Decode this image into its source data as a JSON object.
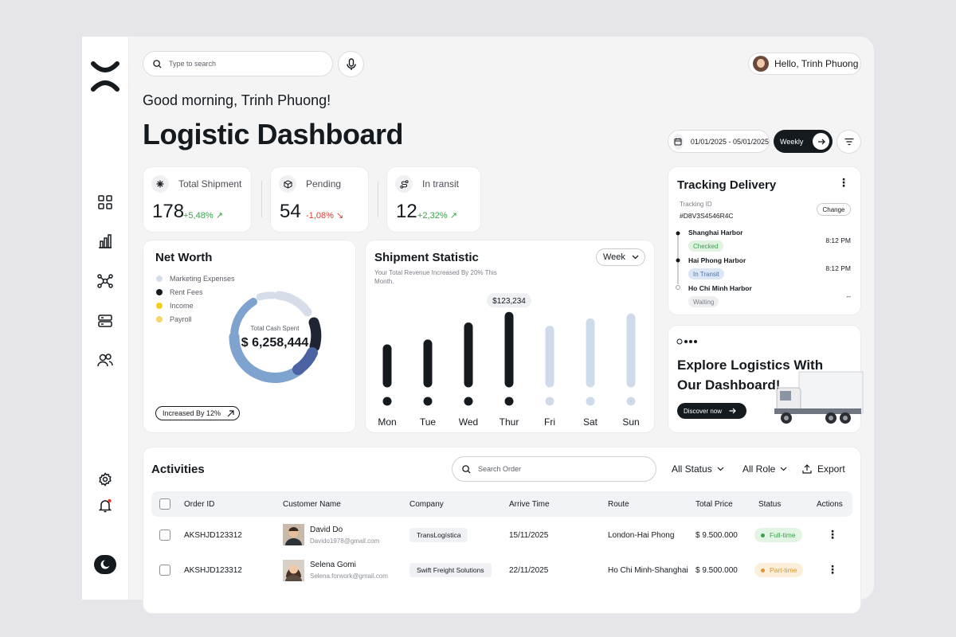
{
  "search": {
    "placeholder": "Type to search"
  },
  "user": {
    "greeting_chip": "Hello, Trinh Phuong"
  },
  "header": {
    "greeting": "Good morning, Trinh Phuong!",
    "title": "Logistic Dashboard",
    "date_range": "01/01/2025 - 05/01/2025",
    "period_button": "Weekly"
  },
  "stats": [
    {
      "label": "Total Shipment",
      "value": "178",
      "change": "+5,48%",
      "trend": "up",
      "icon": "asterisk-icon"
    },
    {
      "label": "Pending",
      "value": "54",
      "change": "-1,08%",
      "trend": "down",
      "icon": "box-icon"
    },
    {
      "label": "In transit",
      "value": "12",
      "change": "+2,32%",
      "trend": "up",
      "icon": "route-icon"
    }
  ],
  "net_worth": {
    "title": "Net Worth",
    "legend": [
      {
        "label": "Marketing Expenses",
        "color": "#d6dde8"
      },
      {
        "label": "Rent Fees",
        "color": "#151a1f"
      },
      {
        "label": "Income",
        "color": "#f2cf1f"
      },
      {
        "label": "Payroll",
        "color": "#f5d56a"
      }
    ],
    "center_label": "Total Cash Spent",
    "center_value": "$ 6,258,444",
    "increase_button": "Increased By 12%"
  },
  "shipment": {
    "title": "Shipment Statistic",
    "period_select": "Week",
    "note": "Your Total Revenue Increased By 20% This Month.",
    "tooltip": "$123,234"
  },
  "chart_data": {
    "type": "bar",
    "title": "Shipment Statistic",
    "categories": [
      "Mon",
      "Tue",
      "Wed",
      "Thur",
      "Fri",
      "Sat",
      "Sun"
    ],
    "values": [
      48,
      54,
      75,
      88,
      71,
      80,
      86
    ],
    "highlighted": [
      "Mon",
      "Tue",
      "Wed",
      "Thur"
    ],
    "annotations": [
      {
        "category": "Thur",
        "label": "$123,234"
      }
    ],
    "colors": {
      "active": "#151a1f",
      "inactive": "#cfdbea"
    },
    "ylim": [
      0,
      100
    ]
  },
  "tracking": {
    "title": "Tracking Delivery",
    "id_label": "Tracking ID",
    "id_value": "#D8V3S4546R4C",
    "change_button": "Change",
    "stops": [
      {
        "port": "Shanghai Harbor",
        "status": "Checked",
        "time": "8:12 PM"
      },
      {
        "port": "Hai Phong Harbor",
        "status": "In Transit",
        "time": "8:12 PM"
      },
      {
        "port": "Ho Chi Minh Harbor",
        "status": "Waiting",
        "time": "--"
      }
    ]
  },
  "explore": {
    "title": "Explore Logistics With Our Dashboard!",
    "button": "Discover now"
  },
  "activities": {
    "title": "Activities",
    "search_placeholder": "Search Order",
    "status_filter": "All Status",
    "role_filter": "All Role",
    "export": "Export",
    "columns": [
      "Order ID",
      "Customer Name",
      "Company",
      "Arrive Time",
      "Route",
      "Total Price",
      "Status",
      "Actions"
    ],
    "rows": [
      {
        "order_id": "AKSHJD123312",
        "name": "David Do",
        "email": "Davido1978@gmail.com",
        "company": "TransLogística",
        "arrive": "15/11/2025",
        "route": "London-Hai Phong",
        "price": "$ 9.500.000",
        "status": "Full-time"
      },
      {
        "order_id": "AKSHJD123312",
        "name": "Selena Gomi",
        "email": "Selena.forwork@gmail.com",
        "company": "Swift Freight Solutions",
        "arrive": "22/11/2025",
        "route": "Ho Chi Minh-Shanghai",
        "price": "$ 9.500.000",
        "status": "Part-time"
      }
    ]
  },
  "colors": {
    "accent_dark": "#151a1f",
    "positive": "#3aa14a",
    "negative": "#e03a2f",
    "donut_blue": "#7fa3cf",
    "donut_navy": "#4b62a3"
  }
}
